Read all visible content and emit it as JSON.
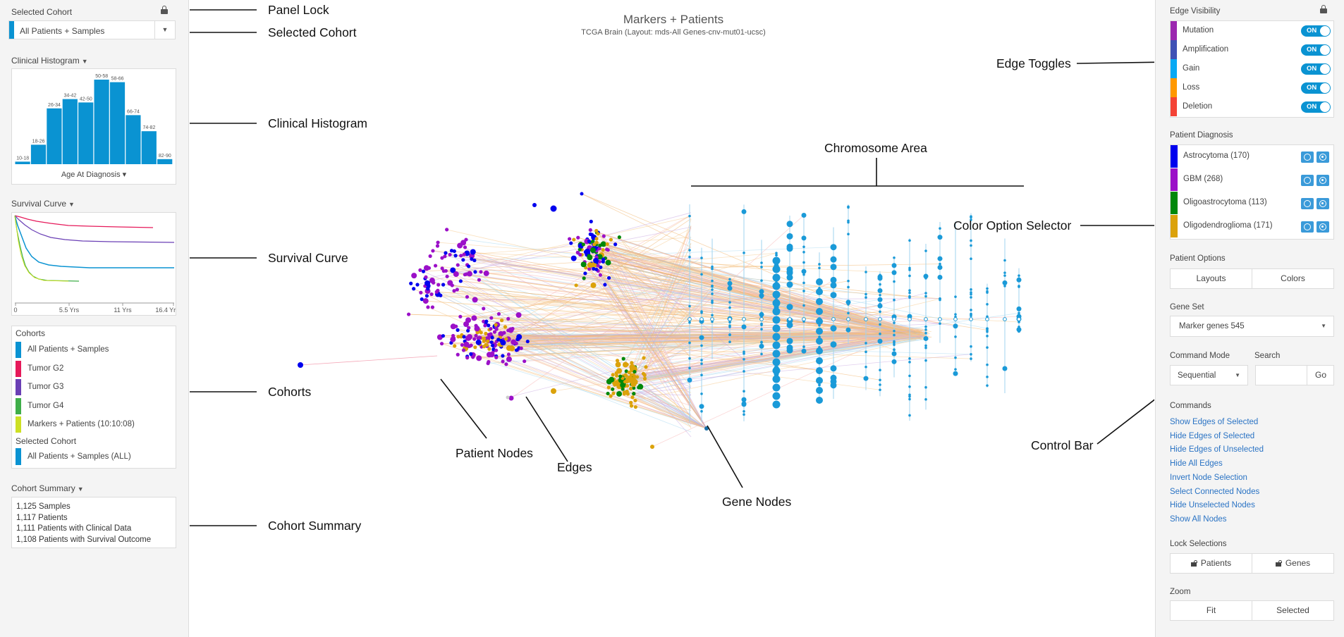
{
  "header": {
    "title": "Markers + Patients",
    "subtitle": "TCGA Brain (Layout: mds-All Genes-cnv-mut01-ucsc)"
  },
  "left": {
    "selected_cohort_title": "Selected Cohort",
    "selected_cohort_value": "All Patients + Samples",
    "selected_cohort_color": "#0a93d2",
    "histogram_title": "Clinical Histogram",
    "histogram_xlabel": "Age At Diagnosis",
    "survival_title": "Survival Curve",
    "survival_ticks": [
      "0",
      "5.5 Yrs",
      "11 Yrs",
      "16.4 Yrs"
    ],
    "cohorts_title": "Cohorts",
    "cohorts": [
      {
        "label": "All Patients + Samples",
        "color": "#0a93d2"
      },
      {
        "label": "Tumor G2",
        "color": "#e6195a"
      },
      {
        "label": "Tumor G3",
        "color": "#6a3fb5"
      },
      {
        "label": "Tumor G4",
        "color": "#3fae49"
      },
      {
        "label": "Markers + Patients (10:10:08)",
        "color": "#cde024"
      }
    ],
    "selected_cohort_sub_title": "Selected Cohort",
    "selected_cohort_sub_value": "All Patients + Samples (ALL)",
    "summary_title": "Cohort Summary",
    "summary_lines": [
      "1,125 Samples",
      "1,117 Patients",
      "1,111 Patients with Clinical Data",
      "1,108 Patients with Survival Outcome"
    ]
  },
  "chart_data": {
    "type": "bar",
    "categories": [
      "10-18",
      "18-26",
      "26-34",
      "34-42",
      "42-50",
      "50-58",
      "58-66",
      "66-74",
      "74-82",
      "82-90"
    ],
    "values": [
      3,
      23,
      66,
      77,
      73,
      100,
      97,
      58,
      39,
      6
    ],
    "xlabel": "Age At Diagnosis",
    "color": "#0a93d2"
  },
  "right": {
    "edge_visibility_title": "Edge Visibility",
    "edges": [
      {
        "label": "Mutation",
        "color": "#9b27af",
        "state": "ON"
      },
      {
        "label": "Amplification",
        "color": "#3f51b5",
        "state": "ON"
      },
      {
        "label": "Gain",
        "color": "#08a9f4",
        "state": "ON"
      },
      {
        "label": "Loss",
        "color": "#ff9800",
        "state": "ON"
      },
      {
        "label": "Deletion",
        "color": "#f44336",
        "state": "ON"
      }
    ],
    "diagnosis_title": "Patient Diagnosis",
    "diagnoses": [
      {
        "label": "Astrocytoma (170)",
        "color": "#0000ee"
      },
      {
        "label": "GBM (268)",
        "color": "#9b10c8"
      },
      {
        "label": "Oligoastrocytoma (113)",
        "color": "#00880a"
      },
      {
        "label": "Oligodendroglioma (171)",
        "color": "#dba20a"
      }
    ],
    "patient_options_title": "Patient Options",
    "patient_options": [
      "Layouts",
      "Colors"
    ],
    "gene_set_title": "Gene Set",
    "gene_set_value": "Marker genes 545",
    "command_mode_title": "Command Mode",
    "command_mode_value": "Sequential",
    "search_title": "Search",
    "search_button": "Go",
    "commands_title": "Commands",
    "commands": [
      "Show Edges of Selected",
      "Hide Edges of Selected",
      "Hide Edges of Unselected",
      "Hide All Edges",
      "Invert Node Selection",
      "Select Connected Nodes",
      "Hide Unselected Nodes",
      "Show All Nodes"
    ],
    "lock_title": "Lock Selections",
    "lock_buttons": [
      "Patients",
      "Genes"
    ],
    "zoom_title": "Zoom",
    "zoom_buttons": [
      "Fit",
      "Selected"
    ]
  },
  "annotations": {
    "panel_lock": "Panel Lock",
    "selected_cohort": "Selected Cohort",
    "clinical_histogram": "Clinical Histogram",
    "survival_curve": "Survival Curve",
    "cohorts": "Cohorts",
    "cohort_summary": "Cohort Summary",
    "patient_nodes": "Patient Nodes",
    "edges": "Edges",
    "gene_nodes": "Gene Nodes",
    "chromosome_area": "Chromosome Area",
    "edge_toggles": "Edge Toggles",
    "color_option_selector": "Color Option Selector",
    "control_bar": "Control Bar"
  }
}
